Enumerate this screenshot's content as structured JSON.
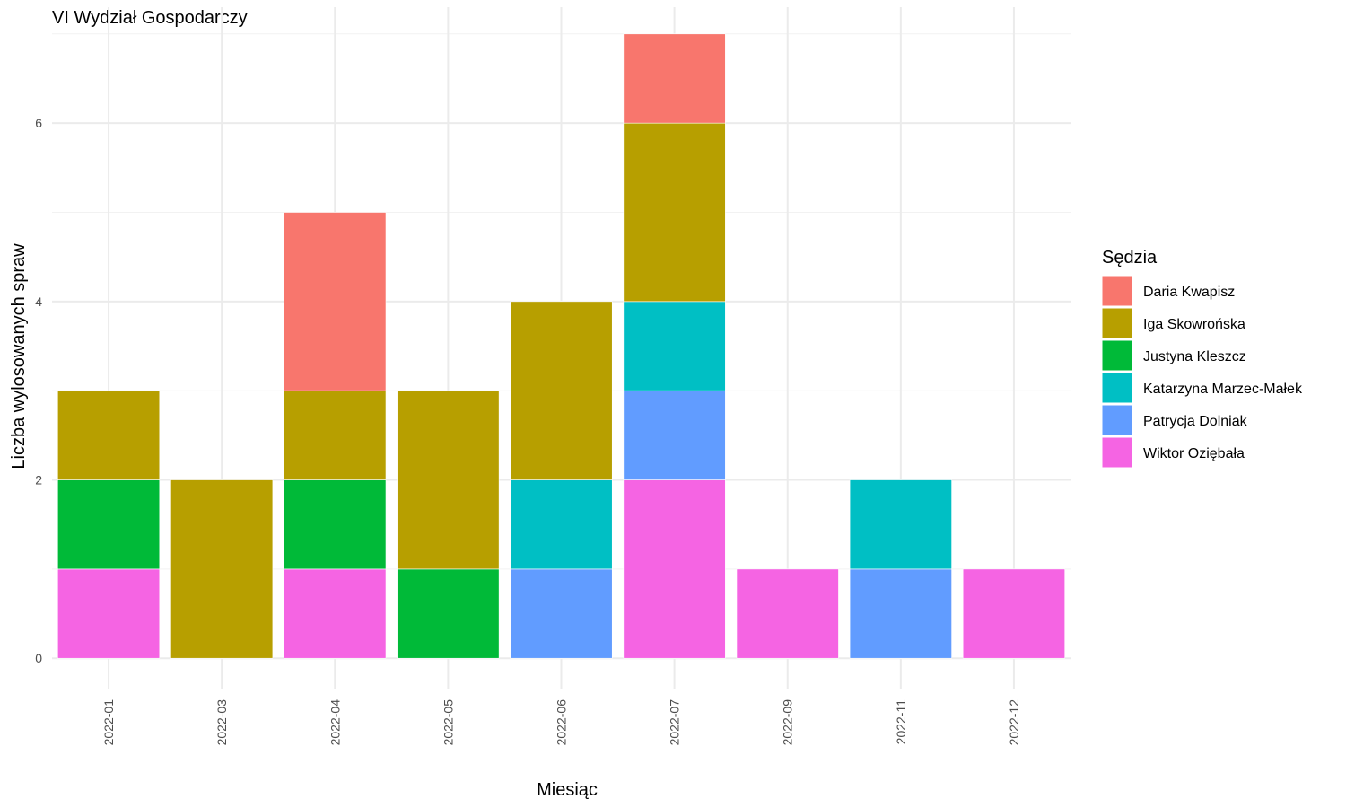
{
  "chart_data": {
    "type": "bar",
    "stacked": true,
    "title": "VI Wydział Gospodarczy",
    "xlabel": "Miesiąc",
    "ylabel": "Liczba wylosowanych spraw",
    "ylim": [
      0,
      7
    ],
    "yticks": [
      0,
      2,
      4,
      6
    ],
    "grid": true,
    "legend_title": "Sędzia",
    "legend_position": "right",
    "categories": [
      "2022-01",
      "2022-03",
      "2022-04",
      "2022-05",
      "2022-06",
      "2022-07",
      "2022-09",
      "2022-11",
      "2022-12"
    ],
    "series": [
      {
        "name": "Daria Kwapisz",
        "color": "#F8766D",
        "values": [
          0,
          0,
          2,
          0,
          0,
          1,
          0,
          0,
          0
        ]
      },
      {
        "name": "Iga Skowrońska",
        "color": "#B79F00",
        "values": [
          1,
          2,
          1,
          2,
          2,
          2,
          0,
          0,
          0
        ]
      },
      {
        "name": "Justyna Kleszcz",
        "color": "#00BA38",
        "values": [
          1,
          0,
          1,
          1,
          0,
          0,
          0,
          0,
          0
        ]
      },
      {
        "name": "Katarzyna Marzec-Małek",
        "color": "#00BFC4",
        "values": [
          0,
          0,
          0,
          0,
          1,
          1,
          0,
          1,
          0
        ]
      },
      {
        "name": "Patrycja Dolniak",
        "color": "#619CFF",
        "values": [
          0,
          0,
          0,
          0,
          1,
          1,
          0,
          1,
          0
        ]
      },
      {
        "name": "Wiktor Oziębała",
        "color": "#F564E3",
        "values": [
          1,
          0,
          1,
          0,
          0,
          2,
          1,
          0,
          1
        ]
      }
    ]
  }
}
